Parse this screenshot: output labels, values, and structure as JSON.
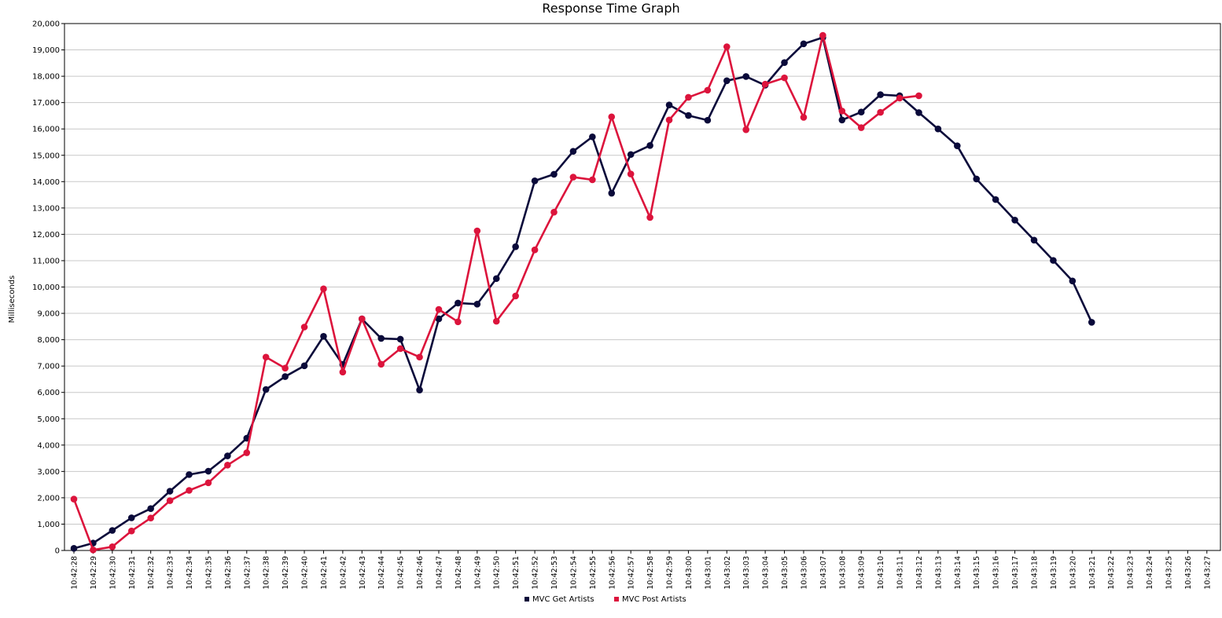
{
  "chart_data": {
    "type": "line",
    "title": "Response Time Graph",
    "xlabel": "",
    "ylabel": "Milliseconds",
    "ylim": [
      0,
      20000
    ],
    "y_ticks": [
      "0",
      "1,000",
      "2,000",
      "3,000",
      "4,000",
      "5,000",
      "6,000",
      "7,000",
      "8,000",
      "9,000",
      "10,000",
      "11,000",
      "12,000",
      "13,000",
      "14,000",
      "15,000",
      "16,000",
      "17,000",
      "18,000",
      "19,000",
      "20,000"
    ],
    "x": [
      "10:42:28",
      "10:42:29",
      "10:42:30",
      "10:42:31",
      "10:42:32",
      "10:42:33",
      "10:42:34",
      "10:42:35",
      "10:42:36",
      "10:42:37",
      "10:42:38",
      "10:42:39",
      "10:42:40",
      "10:42:41",
      "10:42:42",
      "10:42:43",
      "10:42:44",
      "10:42:45",
      "10:42:46",
      "10:42:47",
      "10:42:48",
      "10:42:49",
      "10:42:50",
      "10:42:51",
      "10:42:52",
      "10:42:53",
      "10:42:54",
      "10:42:55",
      "10:42:56",
      "10:42:57",
      "10:42:58",
      "10:42:59",
      "10:43:00",
      "10:43:01",
      "10:43:02",
      "10:43:03",
      "10:43:04",
      "10:43:05",
      "10:43:06",
      "10:43:07",
      "10:43:08",
      "10:43:09",
      "10:43:10",
      "10:43:11",
      "10:43:12",
      "10:43:13",
      "10:43:14",
      "10:43:15",
      "10:43:16",
      "10:43:17",
      "10:43:18",
      "10:43:19",
      "10:43:20",
      "10:43:21",
      "10:43:22",
      "10:43:23",
      "10:43:24",
      "10:43:25",
      "10:43:26",
      "10:43:27"
    ],
    "grid": true,
    "legend_position": "bottom-center",
    "series": [
      {
        "name": "MVC Get Artists",
        "color": "#0a0a3a",
        "values": [
          80,
          280,
          760,
          1240,
          1590,
          2250,
          2880,
          3010,
          3590,
          4260,
          6110,
          6600,
          7010,
          8130,
          7060,
          8790,
          8050,
          8020,
          6090,
          8790,
          9390,
          9350,
          10320,
          11530,
          14030,
          14280,
          15150,
          15700,
          13560,
          15030,
          15370,
          16910,
          16510,
          16330,
          17830,
          17990,
          17660,
          18520,
          19230,
          19470,
          16340,
          16640,
          17300,
          17260,
          16620,
          16000,
          15360,
          14100,
          13320,
          12540,
          11780,
          11010,
          10230,
          8660,
          null,
          null,
          null,
          null,
          null,
          null
        ]
      },
      {
        "name": "MVC Post Artists",
        "color": "#dc143c",
        "values": [
          1950,
          20,
          140,
          740,
          1230,
          1890,
          2280,
          2570,
          3240,
          3710,
          7340,
          6920,
          8480,
          9930,
          6770,
          8790,
          7070,
          7660,
          7340,
          9150,
          8680,
          12130,
          8700,
          9660,
          11410,
          12840,
          14170,
          14070,
          16460,
          14290,
          12640,
          16340,
          17200,
          17470,
          19120,
          15970,
          17700,
          17940,
          16440,
          19550,
          16680,
          16050,
          16630,
          17170,
          17260,
          null,
          null,
          null,
          null,
          null,
          null,
          null,
          null,
          null,
          null,
          null,
          null,
          null,
          null,
          null
        ]
      }
    ]
  }
}
